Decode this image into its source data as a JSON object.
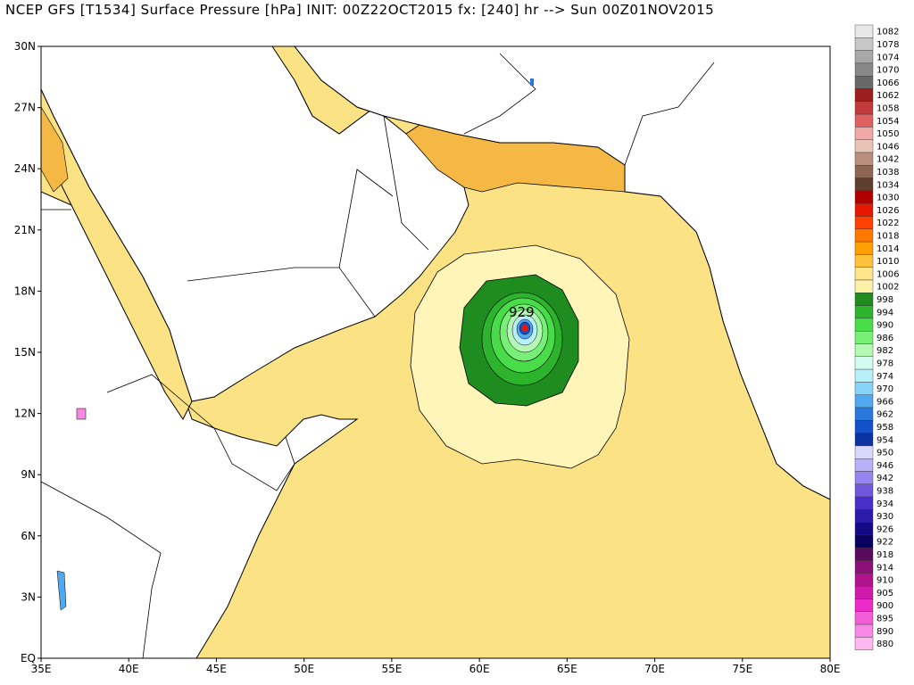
{
  "title": "NCEP GFS [T1534] Surface Pressure [hPa] INIT: 00Z22OCT2015 fx: [240] hr --> Sun 00Z01NOV2015",
  "chart_data": {
    "type": "heatmap",
    "title": "NCEP GFS [T1534] Surface Pressure [hPa] INIT: 00Z22OCT2015 fx: [240] hr --> Sun 00Z01NOV2015",
    "x_ticks": [
      "35E",
      "40E",
      "45E",
      "50E",
      "55E",
      "60E",
      "65E",
      "70E",
      "75E",
      "80E"
    ],
    "y_ticks": [
      "30N",
      "27N",
      "24N",
      "21N",
      "18N",
      "15N",
      "12N",
      "9N",
      "6N",
      "3N",
      "EQ"
    ],
    "xlim": [
      35,
      80
    ],
    "ylim": [
      0,
      30
    ],
    "low_center": {
      "lon": 62.7,
      "lat": 16.5,
      "label": "929"
    },
    "legend": {
      "labels": [
        "1082",
        "1078",
        "1074",
        "1070",
        "1066",
        "1062",
        "1058",
        "1054",
        "1050",
        "1046",
        "1042",
        "1038",
        "1034",
        "1030",
        "1026",
        "1022",
        "1018",
        "1014",
        "1010",
        "1006",
        "1002",
        "998",
        "994",
        "990",
        "986",
        "982",
        "978",
        "974",
        "970",
        "966",
        "962",
        "958",
        "954",
        "950",
        "946",
        "942",
        "938",
        "934",
        "930",
        "926",
        "922",
        "918",
        "914",
        "910",
        "905",
        "900",
        "895",
        "890",
        "880"
      ],
      "colors": [
        "#e8e8e8",
        "#c8c8c8",
        "#a8a8a8",
        "#888888",
        "#686868",
        "#9c1e1e",
        "#c23b3b",
        "#e06060",
        "#f2a7a7",
        "#e8c3b6",
        "#b98e7c",
        "#8e6652",
        "#5e3e2e",
        "#b00000",
        "#e81800",
        "#ff4000",
        "#ff7800",
        "#ffa000",
        "#ffc03c",
        "#ffe68c",
        "#fff0a8",
        "#1e8c1e",
        "#2db42d",
        "#48dc48",
        "#78f078",
        "#b4f8b4",
        "#d2fcf0",
        "#b8f0fa",
        "#86d4f8",
        "#50a8f0",
        "#2a78dc",
        "#1450c8",
        "#0a32a0",
        "#d8d8fc",
        "#b8b0f8",
        "#9684f0",
        "#7058dc",
        "#4830c8",
        "#2a1ca8",
        "#140a88",
        "#0a0064",
        "#5a0a5a",
        "#8c1078",
        "#b0148c",
        "#d01cac",
        "#ec2cc8",
        "#f45cd8",
        "#f888e4",
        "#fcb8f0"
      ]
    }
  }
}
